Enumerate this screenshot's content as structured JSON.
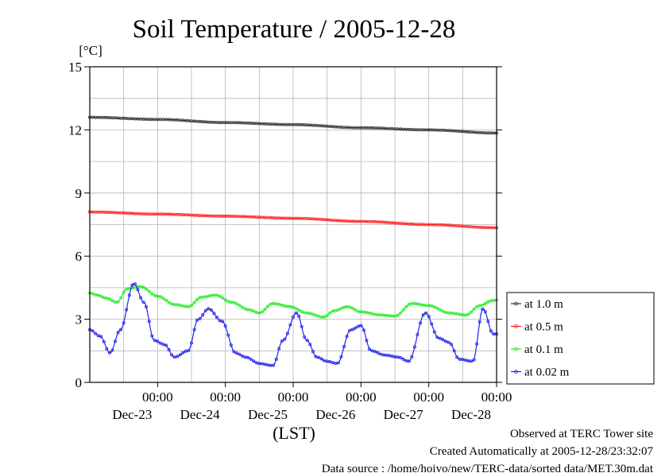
{
  "chart_data": {
    "type": "line",
    "title": "Soil Temperature / 2005-12-28",
    "ylabel": "[°C]",
    "xlabel": "(LST)",
    "ylim": [
      0,
      15
    ],
    "yticks": [
      0,
      3,
      6,
      9,
      12,
      15
    ],
    "xlim": [
      0,
      6
    ],
    "x_unit": "days since Dec-22 00:00",
    "xticks": [
      {
        "x": 1,
        "top": "00:00",
        "bottom": "Dec-23"
      },
      {
        "x": 2,
        "top": "00:00",
        "bottom": "Dec-24"
      },
      {
        "x": 3,
        "top": "00:00",
        "bottom": "Dec-25"
      },
      {
        "x": 4,
        "top": "00:00",
        "bottom": "Dec-26"
      },
      {
        "x": 5,
        "top": "00:00",
        "bottom": "Dec-27"
      },
      {
        "x": 6,
        "top": "00:00",
        "bottom": "Dec-28"
      }
    ],
    "grid": true,
    "legend_position": "right",
    "series": [
      {
        "name": "at 1.0 m",
        "color": "#333333",
        "x": [
          0,
          1,
          2,
          3,
          4,
          5,
          6
        ],
        "values": [
          12.6,
          12.5,
          12.35,
          12.25,
          12.1,
          12.0,
          11.85
        ]
      },
      {
        "name": "at 0.5 m",
        "color": "#ff2020",
        "x": [
          0,
          1,
          2,
          3,
          4,
          5,
          6
        ],
        "values": [
          8.1,
          8.0,
          7.9,
          7.8,
          7.65,
          7.5,
          7.35
        ]
      },
      {
        "name": "at 0.1 m",
        "color": "#22ee22",
        "x": [
          0,
          0.1,
          0.25,
          0.4,
          0.55,
          0.75,
          1.0,
          1.25,
          1.45,
          1.65,
          1.85,
          2.1,
          2.35,
          2.5,
          2.7,
          2.95,
          3.2,
          3.45,
          3.6,
          3.8,
          4.0,
          4.3,
          4.5,
          4.75,
          5.0,
          5.3,
          5.55,
          5.75,
          5.95
        ],
        "values": [
          4.25,
          4.15,
          4.0,
          3.8,
          4.45,
          4.55,
          4.1,
          3.7,
          3.6,
          4.05,
          4.15,
          3.8,
          3.45,
          3.3,
          3.75,
          3.6,
          3.3,
          3.1,
          3.4,
          3.6,
          3.35,
          3.2,
          3.15,
          3.75,
          3.65,
          3.3,
          3.2,
          3.65,
          3.9
        ]
      },
      {
        "name": "at 0.02 m",
        "color": "#2222ee",
        "x": [
          0,
          0.15,
          0.3,
          0.45,
          0.65,
          0.8,
          0.95,
          1.1,
          1.25,
          1.45,
          1.6,
          1.75,
          1.95,
          2.15,
          2.3,
          2.5,
          2.7,
          2.85,
          3.05,
          3.2,
          3.35,
          3.5,
          3.65,
          3.85,
          4.0,
          4.15,
          4.35,
          4.55,
          4.7,
          4.95,
          5.15,
          5.3,
          5.45,
          5.65,
          5.8,
          5.95
        ],
        "values": [
          2.5,
          2.2,
          1.4,
          2.5,
          4.7,
          3.8,
          2.0,
          1.8,
          1.2,
          1.5,
          3.0,
          3.5,
          2.9,
          1.4,
          1.2,
          0.9,
          0.8,
          2.0,
          3.3,
          2.0,
          1.2,
          1.0,
          0.9,
          2.5,
          2.7,
          1.5,
          1.3,
          1.2,
          1.0,
          3.3,
          2.1,
          1.9,
          1.1,
          1.0,
          3.5,
          2.3
        ]
      }
    ]
  },
  "footer": {
    "observed": "Observed at TERC Tower site",
    "created": "Created Automatically at 2005-12-28/23:32:07",
    "source": "Data source : /home/hoivo/new/TERC-data/sorted  data/MET.30m.dat"
  }
}
